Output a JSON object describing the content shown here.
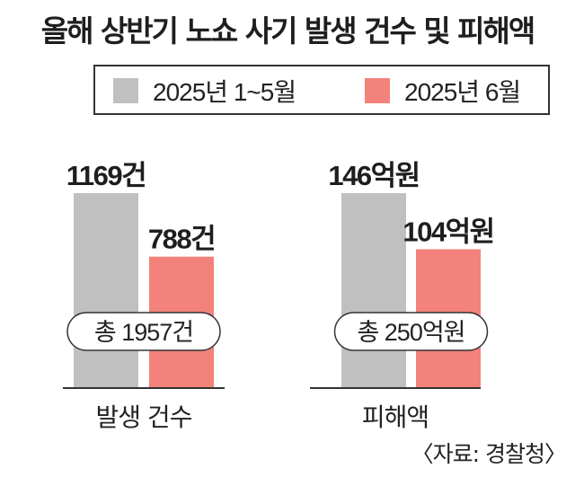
{
  "title": "올해 상반기 노쇼 사기 발생 건수 및 피해액",
  "source": "〈자료: 경찰청〉",
  "colors": {
    "series1": "#c0c0c0",
    "series2": "#f2827a",
    "axis": "#333333"
  },
  "chart_data": {
    "type": "bar",
    "series": [
      {
        "name": "2025년 1~5월",
        "color": "#c0c0c0"
      },
      {
        "name": "2025년 6월",
        "color": "#f2827a"
      }
    ],
    "groups": [
      {
        "category": "발생 건수",
        "values": [
          1169,
          788
        ],
        "labels": [
          "1169건",
          "788건"
        ],
        "total_label": "총 1957건"
      },
      {
        "category": "피해액",
        "values": [
          146,
          104
        ],
        "labels": [
          "146억원",
          "104억원"
        ],
        "total_label": "총 250억원"
      }
    ]
  }
}
